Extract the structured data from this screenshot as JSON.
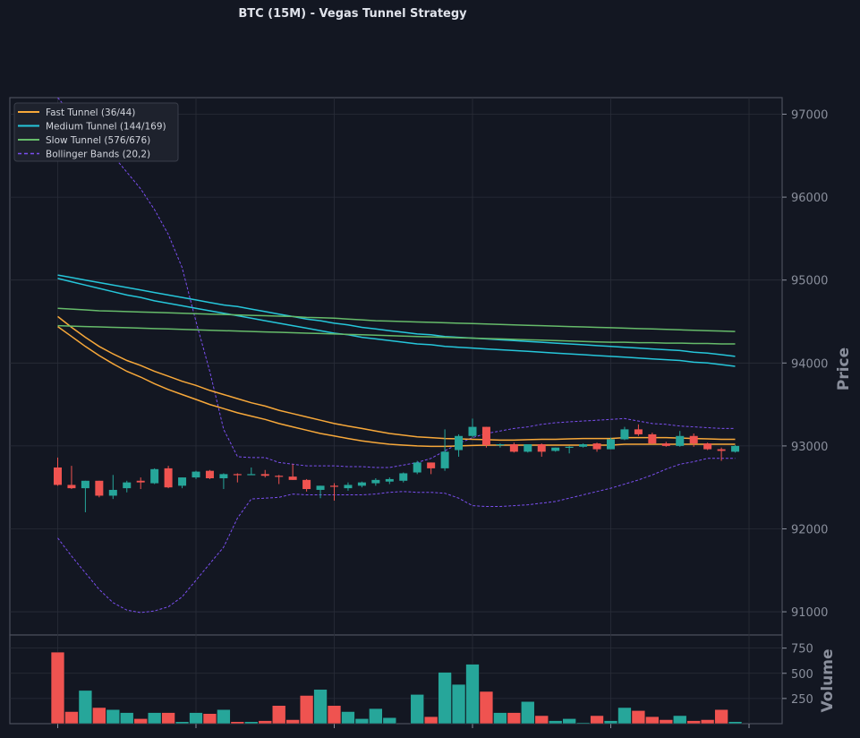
{
  "chart_data": [
    {
      "type": "candlestick",
      "title": "BTC (15M) - Vegas Tunnel Strategy",
      "ylabel": "Price",
      "ylim": [
        90720,
        97200
      ],
      "y_ticks": [
        91000,
        92000,
        93000,
        94000,
        95000,
        96000,
        97000
      ],
      "x_count": 50,
      "grid": true,
      "legend_position": "top-left",
      "legend": [
        {
          "label": "Fast Tunnel (36/44)",
          "color": "#f7a83a",
          "style": "solid"
        },
        {
          "label": "Medium Tunnel (144/169)",
          "color": "#26c6da",
          "style": "solid"
        },
        {
          "label": "Slow Tunnel (576/676)",
          "color": "#66bb6a",
          "style": "solid"
        },
        {
          "label": "Bollinger Bands (20,2)",
          "color": "#7b4ff0",
          "style": "dashed"
        }
      ],
      "colors": {
        "up": "#26a69a",
        "down": "#ef5350",
        "background": "#131722",
        "grid": "#2a2e39"
      },
      "candles": [
        [
          92740,
          92860,
          92520,
          92530
        ],
        [
          92530,
          92760,
          92480,
          92490
        ],
        [
          92490,
          92580,
          92200,
          92580
        ],
        [
          92580,
          92580,
          92380,
          92400
        ],
        [
          92400,
          92650,
          92360,
          92470
        ],
        [
          92490,
          92580,
          92440,
          92560
        ],
        [
          92580,
          92620,
          92480,
          92560
        ],
        [
          92550,
          92730,
          92540,
          92720
        ],
        [
          92730,
          92760,
          92490,
          92500
        ],
        [
          92520,
          92620,
          92490,
          92620
        ],
        [
          92620,
          92700,
          92600,
          92690
        ],
        [
          92700,
          92710,
          92600,
          92610
        ],
        [
          92610,
          92670,
          92480,
          92660
        ],
        [
          92660,
          92670,
          92560,
          92650
        ],
        [
          92650,
          92740,
          92650,
          92660
        ],
        [
          92660,
          92710,
          92620,
          92640
        ],
        [
          92640,
          92650,
          92540,
          92630
        ],
        [
          92630,
          92780,
          92590,
          92590
        ],
        [
          92590,
          92600,
          92450,
          92480
        ],
        [
          92470,
          92520,
          92370,
          92520
        ],
        [
          92520,
          92550,
          92340,
          92510
        ],
        [
          92490,
          92560,
          92460,
          92530
        ],
        [
          92520,
          92570,
          92500,
          92560
        ],
        [
          92550,
          92610,
          92520,
          92590
        ],
        [
          92570,
          92620,
          92540,
          92600
        ],
        [
          92580,
          92680,
          92560,
          92670
        ],
        [
          92680,
          92820,
          92660,
          92800
        ],
        [
          92800,
          92800,
          92660,
          92730
        ],
        [
          92730,
          93200,
          92700,
          92930
        ],
        [
          92950,
          93140,
          92870,
          93120
        ],
        [
          93120,
          93330,
          93100,
          93230
        ],
        [
          93230,
          93230,
          92980,
          93010
        ],
        [
          93010,
          93030,
          92980,
          93020
        ],
        [
          93020,
          93040,
          92920,
          92930
        ],
        [
          92930,
          93020,
          92920,
          93020
        ],
        [
          93020,
          93030,
          92870,
          92930
        ],
        [
          92940,
          92980,
          92930,
          92980
        ],
        [
          92980,
          93000,
          92910,
          92990
        ],
        [
          92990,
          93030,
          92980,
          93020
        ],
        [
          93030,
          93040,
          92930,
          92960
        ],
        [
          92960,
          93100,
          92960,
          93080
        ],
        [
          93080,
          93230,
          93070,
          93200
        ],
        [
          93200,
          93260,
          93120,
          93140
        ],
        [
          93140,
          93160,
          93020,
          93030
        ],
        [
          93030,
          93050,
          92990,
          93000
        ],
        [
          93000,
          93180,
          92990,
          93120
        ],
        [
          93120,
          93150,
          92990,
          93030
        ],
        [
          93030,
          93040,
          92950,
          92960
        ],
        [
          92960,
          92980,
          92820,
          92940
        ],
        [
          92930,
          93010,
          92920,
          93000
        ]
      ],
      "volume": {
        "ylabel": "Volume",
        "ylim": [
          0,
          880
        ],
        "y_ticks": [
          250,
          500,
          750
        ],
        "values": [
          710,
          120,
          330,
          160,
          140,
          110,
          50,
          110,
          110,
          20,
          110,
          100,
          140,
          20,
          20,
          30,
          180,
          40,
          280,
          340,
          180,
          120,
          50,
          150,
          60,
          0,
          290,
          70,
          510,
          390,
          590,
          320,
          110,
          110,
          220,
          80,
          30,
          50,
          10,
          80,
          30,
          160,
          130,
          70,
          40,
          80,
          30,
          40,
          140,
          20
        ]
      },
      "series": [
        {
          "name": "Fast Tunnel (36/44)",
          "color": "#f7a83a",
          "values": [
            94560,
            94430,
            94310,
            94200,
            94110,
            94030,
            93970,
            93900,
            93840,
            93780,
            93730,
            93670,
            93620,
            93570,
            93520,
            93480,
            93430,
            93390,
            93350,
            93310,
            93270,
            93240,
            93210,
            93180,
            93150,
            93130,
            93110,
            93100,
            93090,
            93085,
            93080,
            93075,
            93070,
            93070,
            93075,
            93080,
            93080,
            93085,
            93090,
            93090,
            93090,
            93100,
            93100,
            93100,
            93100,
            93095,
            93090,
            93085,
            93080,
            93080
          ]
        },
        {
          "name": "Fast Tunnel (36/44)",
          "color": "#f7a83a",
          "values": [
            94440,
            94320,
            94200,
            94090,
            93990,
            93900,
            93830,
            93750,
            93680,
            93620,
            93560,
            93500,
            93450,
            93400,
            93360,
            93320,
            93270,
            93230,
            93190,
            93150,
            93120,
            93090,
            93060,
            93040,
            93020,
            93010,
            93000,
            92995,
            92995,
            93000,
            93005,
            93010,
            93010,
            93010,
            93010,
            93010,
            93010,
            93010,
            93010,
            93010,
            93010,
            93020,
            93020,
            93020,
            93020,
            93020,
            93020,
            93020,
            93020,
            93020
          ]
        },
        {
          "name": "Medium Tunnel (144/169)",
          "color": "#26c6da",
          "values": [
            95060,
            95030,
            95000,
            94970,
            94940,
            94910,
            94880,
            94850,
            94820,
            94790,
            94760,
            94730,
            94700,
            94680,
            94650,
            94620,
            94590,
            94560,
            94530,
            94510,
            94480,
            94460,
            94430,
            94410,
            94390,
            94370,
            94350,
            94340,
            94320,
            94310,
            94300,
            94290,
            94280,
            94270,
            94260,
            94250,
            94240,
            94230,
            94220,
            94210,
            94200,
            94190,
            94180,
            94170,
            94160,
            94150,
            94130,
            94120,
            94100,
            94080
          ]
        },
        {
          "name": "Medium Tunnel (144/169)",
          "color": "#26c6da",
          "values": [
            95020,
            94980,
            94940,
            94900,
            94860,
            94820,
            94790,
            94750,
            94720,
            94690,
            94660,
            94630,
            94600,
            94570,
            94540,
            94510,
            94480,
            94450,
            94420,
            94390,
            94360,
            94340,
            94310,
            94290,
            94270,
            94250,
            94230,
            94220,
            94200,
            94190,
            94180,
            94170,
            94160,
            94150,
            94140,
            94130,
            94120,
            94110,
            94100,
            94090,
            94080,
            94070,
            94060,
            94050,
            94040,
            94030,
            94010,
            94000,
            93980,
            93960
          ]
        },
        {
          "name": "Slow Tunnel (576/676)",
          "color": "#66bb6a",
          "values": [
            94660,
            94650,
            94640,
            94630,
            94625,
            94620,
            94615,
            94610,
            94605,
            94600,
            94595,
            94590,
            94585,
            94580,
            94575,
            94570,
            94565,
            94560,
            94550,
            94545,
            94540,
            94530,
            94520,
            94510,
            94505,
            94500,
            94495,
            94490,
            94485,
            94480,
            94475,
            94470,
            94465,
            94460,
            94455,
            94450,
            94445,
            94440,
            94435,
            94430,
            94425,
            94420,
            94415,
            94410,
            94405,
            94400,
            94395,
            94390,
            94385,
            94380
          ]
        },
        {
          "name": "Slow Tunnel (576/676)",
          "color": "#66bb6a",
          "values": [
            94450,
            94445,
            94440,
            94435,
            94430,
            94425,
            94420,
            94415,
            94410,
            94405,
            94400,
            94395,
            94390,
            94385,
            94380,
            94375,
            94370,
            94365,
            94360,
            94355,
            94350,
            94345,
            94340,
            94335,
            94330,
            94325,
            94320,
            94315,
            94310,
            94305,
            94300,
            94295,
            94290,
            94285,
            94280,
            94275,
            94270,
            94265,
            94260,
            94255,
            94250,
            94250,
            94245,
            94245,
            94240,
            94240,
            94235,
            94235,
            94230,
            94230
          ]
        },
        {
          "name": "Bollinger Bands (20,2)",
          "color": "#7b4ff0",
          "values": [
            97200,
            97000,
            96850,
            96700,
            96500,
            96300,
            96100,
            95850,
            95550,
            95150,
            94500,
            93900,
            93200,
            92870,
            92860,
            92860,
            92800,
            92780,
            92760,
            92760,
            92760,
            92750,
            92750,
            92740,
            92740,
            92770,
            92800,
            92850,
            92940,
            93030,
            93100,
            93150,
            93180,
            93210,
            93230,
            93260,
            93280,
            93290,
            93300,
            93310,
            93320,
            93330,
            93300,
            93270,
            93260,
            93240,
            93230,
            93220,
            93210,
            93210
          ]
        },
        {
          "name": "Bollinger Bands (20,2)",
          "color": "#7b4ff0",
          "values": [
            91890,
            91670,
            91470,
            91270,
            91110,
            91020,
            90990,
            91010,
            91060,
            91180,
            91380,
            91580,
            91780,
            92130,
            92360,
            92370,
            92380,
            92420,
            92410,
            92410,
            92410,
            92410,
            92410,
            92420,
            92440,
            92450,
            92440,
            92440,
            92430,
            92370,
            92280,
            92270,
            92270,
            92280,
            92290,
            92310,
            92330,
            92370,
            92410,
            92450,
            92490,
            92540,
            92590,
            92650,
            92720,
            92780,
            92810,
            92850,
            92850,
            92850
          ]
        }
      ]
    }
  ]
}
